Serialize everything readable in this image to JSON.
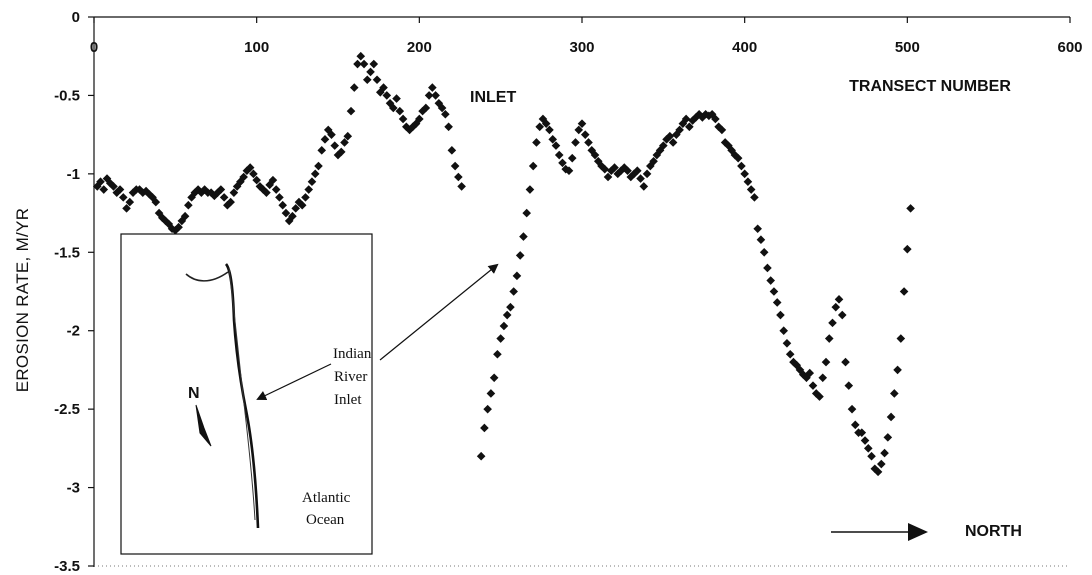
{
  "chart_data": {
    "type": "scatter",
    "title": "",
    "xlabel": "TRANSECT NUMBER",
    "ylabel": "EROSION RATE, M/YR",
    "xlim": [
      0,
      600
    ],
    "ylim": [
      -3.5,
      0
    ],
    "x_ticks": [
      0,
      100,
      200,
      300,
      400,
      500,
      600
    ],
    "y_ticks": [
      0,
      -0.5,
      -1,
      -1.5,
      -2,
      -2.5,
      -3,
      -3.5
    ],
    "x_tick_labels": [
      "0",
      "100",
      "200",
      "300",
      "400",
      "500",
      "600"
    ],
    "y_tick_labels": [
      "0",
      "-0.5",
      "-1",
      "-1.5",
      "-2",
      "-2.5",
      "-3",
      "-3.5"
    ],
    "marker": "diamond",
    "color": "#111111",
    "grid": false,
    "series": [
      {
        "points": [
          [
            2,
            -1.08
          ],
          [
            4,
            -1.05
          ],
          [
            6,
            -1.1
          ],
          [
            8,
            -1.03
          ],
          [
            10,
            -1.06
          ],
          [
            12,
            -1.08
          ],
          [
            14,
            -1.12
          ],
          [
            16,
            -1.1
          ],
          [
            18,
            -1.15
          ],
          [
            20,
            -1.22
          ],
          [
            22,
            -1.18
          ],
          [
            24,
            -1.12
          ],
          [
            26,
            -1.1
          ],
          [
            28,
            -1.1
          ],
          [
            30,
            -1.12
          ],
          [
            32,
            -1.11
          ],
          [
            34,
            -1.13
          ],
          [
            36,
            -1.15
          ],
          [
            38,
            -1.18
          ],
          [
            40,
            -1.25
          ],
          [
            42,
            -1.28
          ],
          [
            44,
            -1.3
          ],
          [
            46,
            -1.32
          ],
          [
            48,
            -1.35
          ],
          [
            50,
            -1.36
          ],
          [
            52,
            -1.34
          ],
          [
            54,
            -1.3
          ],
          [
            56,
            -1.27
          ],
          [
            58,
            -1.2
          ],
          [
            60,
            -1.15
          ],
          [
            62,
            -1.12
          ],
          [
            64,
            -1.1
          ],
          [
            66,
            -1.12
          ],
          [
            68,
            -1.1
          ],
          [
            70,
            -1.12
          ],
          [
            72,
            -1.12
          ],
          [
            74,
            -1.14
          ],
          [
            76,
            -1.12
          ],
          [
            78,
            -1.1
          ],
          [
            80,
            -1.15
          ],
          [
            82,
            -1.2
          ],
          [
            84,
            -1.18
          ],
          [
            86,
            -1.12
          ],
          [
            88,
            -1.08
          ],
          [
            90,
            -1.05
          ],
          [
            92,
            -1.02
          ],
          [
            94,
            -0.98
          ],
          [
            96,
            -0.96
          ],
          [
            98,
            -1.0
          ],
          [
            100,
            -1.04
          ],
          [
            102,
            -1.08
          ],
          [
            104,
            -1.1
          ],
          [
            106,
            -1.12
          ],
          [
            108,
            -1.07
          ],
          [
            110,
            -1.04
          ],
          [
            112,
            -1.1
          ],
          [
            114,
            -1.15
          ],
          [
            116,
            -1.2
          ],
          [
            118,
            -1.25
          ],
          [
            120,
            -1.3
          ],
          [
            122,
            -1.27
          ],
          [
            124,
            -1.22
          ],
          [
            126,
            -1.18
          ],
          [
            128,
            -1.2
          ],
          [
            130,
            -1.15
          ],
          [
            132,
            -1.1
          ],
          [
            134,
            -1.05
          ],
          [
            136,
            -1.0
          ],
          [
            138,
            -0.95
          ],
          [
            140,
            -0.85
          ],
          [
            142,
            -0.78
          ],
          [
            144,
            -0.72
          ],
          [
            146,
            -0.75
          ],
          [
            148,
            -0.82
          ],
          [
            150,
            -0.88
          ],
          [
            152,
            -0.86
          ],
          [
            154,
            -0.8
          ],
          [
            156,
            -0.76
          ],
          [
            158,
            -0.6
          ],
          [
            160,
            -0.45
          ],
          [
            162,
            -0.3
          ],
          [
            164,
            -0.25
          ],
          [
            166,
            -0.3
          ],
          [
            168,
            -0.4
          ],
          [
            170,
            -0.35
          ],
          [
            172,
            -0.3
          ],
          [
            174,
            -0.4
          ],
          [
            176,
            -0.48
          ],
          [
            178,
            -0.45
          ],
          [
            180,
            -0.5
          ],
          [
            182,
            -0.55
          ],
          [
            184,
            -0.58
          ],
          [
            186,
            -0.52
          ],
          [
            188,
            -0.6
          ],
          [
            190,
            -0.65
          ],
          [
            192,
            -0.7
          ],
          [
            194,
            -0.72
          ],
          [
            196,
            -0.7
          ],
          [
            198,
            -0.68
          ],
          [
            200,
            -0.65
          ],
          [
            202,
            -0.6
          ],
          [
            204,
            -0.58
          ],
          [
            206,
            -0.5
          ],
          [
            208,
            -0.45
          ],
          [
            210,
            -0.5
          ],
          [
            212,
            -0.55
          ],
          [
            214,
            -0.58
          ],
          [
            216,
            -0.62
          ],
          [
            218,
            -0.7
          ],
          [
            220,
            -0.85
          ],
          [
            222,
            -0.95
          ],
          [
            224,
            -1.02
          ],
          [
            226,
            -1.08
          ],
          [
            238,
            -2.8
          ],
          [
            240,
            -2.62
          ],
          [
            242,
            -2.5
          ],
          [
            244,
            -2.4
          ],
          [
            246,
            -2.3
          ],
          [
            248,
            -2.15
          ],
          [
            250,
            -2.05
          ],
          [
            252,
            -1.97
          ],
          [
            254,
            -1.9
          ],
          [
            256,
            -1.85
          ],
          [
            258,
            -1.75
          ],
          [
            260,
            -1.65
          ],
          [
            262,
            -1.52
          ],
          [
            264,
            -1.4
          ],
          [
            266,
            -1.25
          ],
          [
            268,
            -1.1
          ],
          [
            270,
            -0.95
          ],
          [
            272,
            -0.8
          ],
          [
            274,
            -0.7
          ],
          [
            276,
            -0.65
          ],
          [
            278,
            -0.68
          ],
          [
            280,
            -0.72
          ],
          [
            282,
            -0.78
          ],
          [
            284,
            -0.82
          ],
          [
            286,
            -0.88
          ],
          [
            288,
            -0.93
          ],
          [
            290,
            -0.97
          ],
          [
            292,
            -0.98
          ],
          [
            294,
            -0.9
          ],
          [
            296,
            -0.8
          ],
          [
            298,
            -0.72
          ],
          [
            300,
            -0.68
          ],
          [
            302,
            -0.75
          ],
          [
            304,
            -0.8
          ],
          [
            306,
            -0.85
          ],
          [
            308,
            -0.88
          ],
          [
            310,
            -0.92
          ],
          [
            312,
            -0.95
          ],
          [
            314,
            -0.97
          ],
          [
            316,
            -1.02
          ],
          [
            318,
            -0.98
          ],
          [
            320,
            -0.96
          ],
          [
            322,
            -1.0
          ],
          [
            324,
            -0.98
          ],
          [
            326,
            -0.96
          ],
          [
            328,
            -0.98
          ],
          [
            330,
            -1.02
          ],
          [
            332,
            -1.0
          ],
          [
            334,
            -0.98
          ],
          [
            336,
            -1.03
          ],
          [
            338,
            -1.08
          ],
          [
            340,
            -1.0
          ],
          [
            342,
            -0.95
          ],
          [
            344,
            -0.92
          ],
          [
            346,
            -0.88
          ],
          [
            348,
            -0.85
          ],
          [
            350,
            -0.82
          ],
          [
            352,
            -0.78
          ],
          [
            354,
            -0.76
          ],
          [
            356,
            -0.8
          ],
          [
            358,
            -0.75
          ],
          [
            360,
            -0.72
          ],
          [
            362,
            -0.68
          ],
          [
            364,
            -0.65
          ],
          [
            366,
            -0.7
          ],
          [
            368,
            -0.66
          ],
          [
            370,
            -0.64
          ],
          [
            372,
            -0.62
          ],
          [
            374,
            -0.64
          ],
          [
            376,
            -0.62
          ],
          [
            378,
            -0.63
          ],
          [
            380,
            -0.62
          ],
          [
            382,
            -0.65
          ],
          [
            384,
            -0.7
          ],
          [
            386,
            -0.72
          ],
          [
            388,
            -0.8
          ],
          [
            390,
            -0.82
          ],
          [
            392,
            -0.85
          ],
          [
            394,
            -0.88
          ],
          [
            396,
            -0.9
          ],
          [
            398,
            -0.95
          ],
          [
            400,
            -1.0
          ],
          [
            402,
            -1.05
          ],
          [
            404,
            -1.1
          ],
          [
            406,
            -1.15
          ],
          [
            408,
            -1.35
          ],
          [
            410,
            -1.42
          ],
          [
            412,
            -1.5
          ],
          [
            414,
            -1.6
          ],
          [
            416,
            -1.68
          ],
          [
            418,
            -1.75
          ],
          [
            420,
            -1.82
          ],
          [
            422,
            -1.9
          ],
          [
            424,
            -2.0
          ],
          [
            426,
            -2.08
          ],
          [
            428,
            -2.15
          ],
          [
            430,
            -2.2
          ],
          [
            432,
            -2.22
          ],
          [
            434,
            -2.25
          ],
          [
            436,
            -2.28
          ],
          [
            438,
            -2.3
          ],
          [
            440,
            -2.27
          ],
          [
            442,
            -2.35
          ],
          [
            444,
            -2.4
          ],
          [
            446,
            -2.42
          ],
          [
            448,
            -2.3
          ],
          [
            450,
            -2.2
          ],
          [
            452,
            -2.05
          ],
          [
            454,
            -1.95
          ],
          [
            456,
            -1.85
          ],
          [
            458,
            -1.8
          ],
          [
            460,
            -1.9
          ],
          [
            462,
            -2.2
          ],
          [
            464,
            -2.35
          ],
          [
            466,
            -2.5
          ],
          [
            468,
            -2.6
          ],
          [
            470,
            -2.65
          ],
          [
            472,
            -2.65
          ],
          [
            474,
            -2.7
          ],
          [
            476,
            -2.75
          ],
          [
            478,
            -2.8
          ],
          [
            480,
            -2.88
          ],
          [
            482,
            -2.9
          ],
          [
            484,
            -2.85
          ],
          [
            486,
            -2.78
          ],
          [
            488,
            -2.68
          ],
          [
            490,
            -2.55
          ],
          [
            492,
            -2.4
          ],
          [
            494,
            -2.25
          ],
          [
            496,
            -2.05
          ],
          [
            498,
            -1.75
          ],
          [
            500,
            -1.48
          ],
          [
            502,
            -1.22
          ]
        ]
      }
    ],
    "annotations": {
      "inlet": "INLET",
      "north": "NORTH",
      "inset_callout": [
        "Indian",
        "River",
        "Inlet"
      ],
      "inset_compass": "N",
      "inset_ocean": [
        "Atlantic",
        "Ocean"
      ]
    }
  }
}
